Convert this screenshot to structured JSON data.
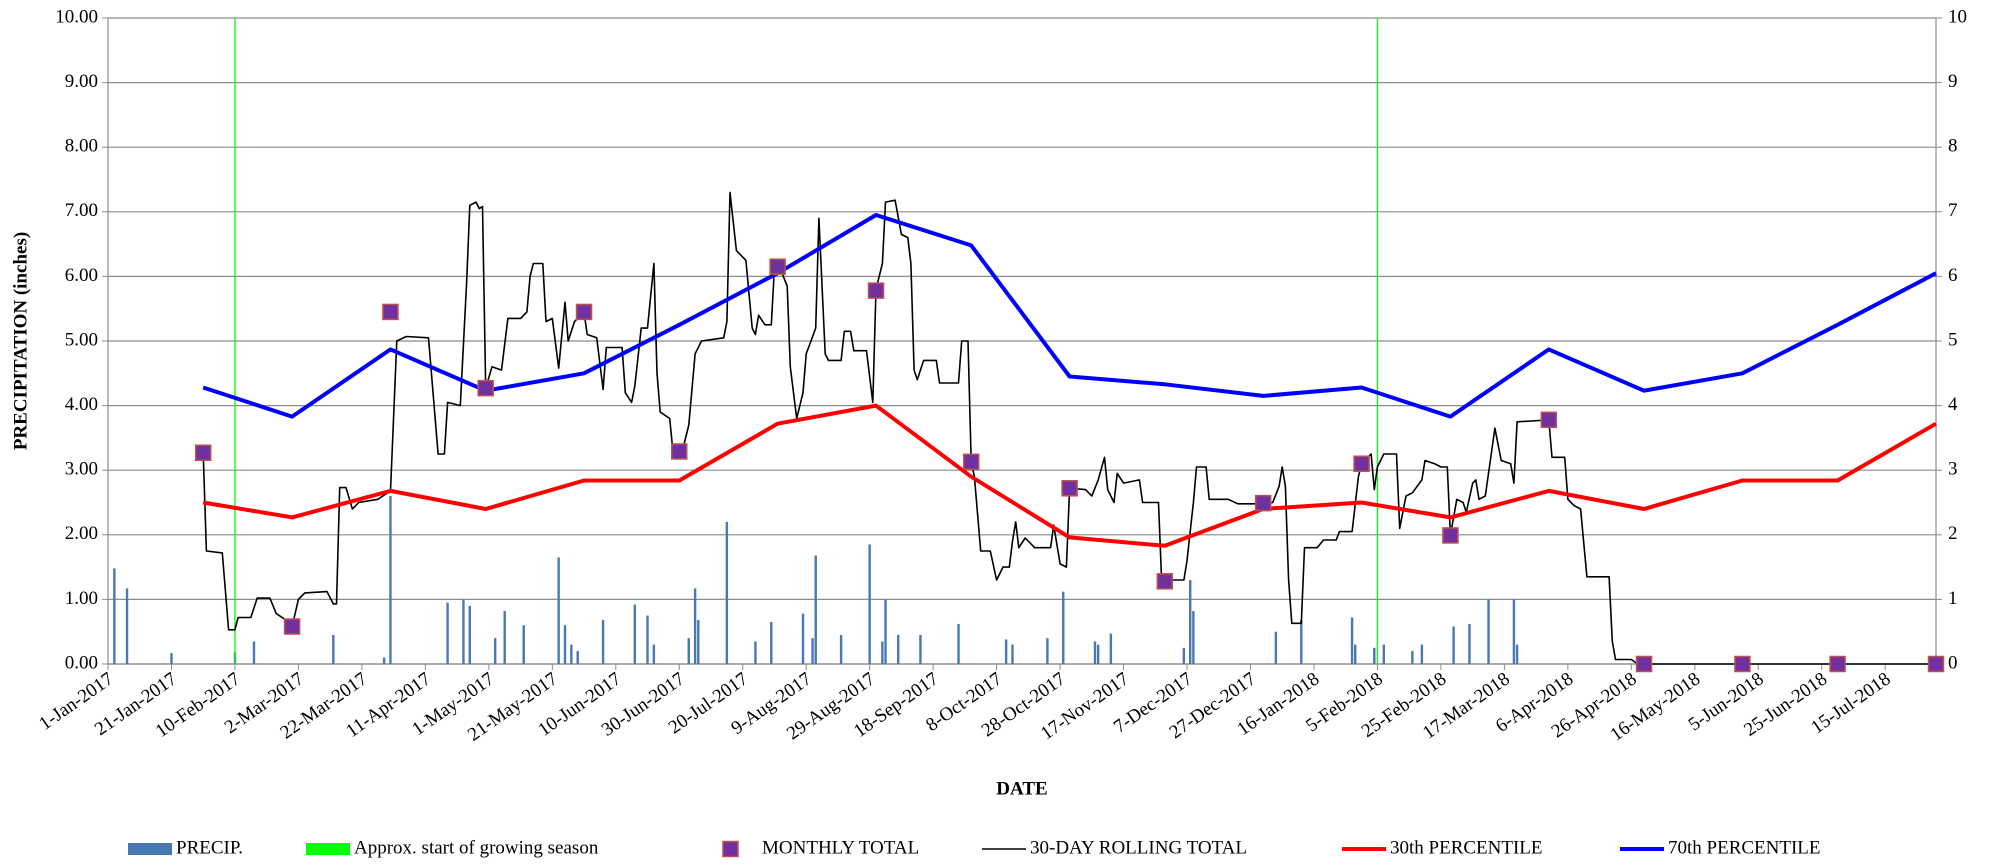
{
  "chart_data": {
    "type": "combo",
    "ylabel": "PRECIPITATION (inches)",
    "xlabel": "DATE",
    "xlim": [
      "1-Jan-2017",
      "31-Jul-2018"
    ],
    "xticks": [
      "1-Jan-2017",
      "21-Jan-2017",
      "10-Feb-2017",
      "2-Mar-2017",
      "22-Mar-2017",
      "11-Apr-2017",
      "1-May-2017",
      "21-May-2017",
      "10-Jun-2017",
      "30-Jun-2017",
      "20-Jul-2017",
      "9-Aug-2017",
      "29-Aug-2017",
      "18-Sep-2017",
      "8-Oct-2017",
      "28-Oct-2017",
      "17-Nov-2017",
      "7-Dec-2017",
      "27-Dec-2017",
      "16-Jan-2018",
      "5-Feb-2018",
      "25-Feb-2018",
      "17-Mar-2018",
      "6-Apr-2018",
      "26-Apr-2018",
      "16-May-2018",
      "5-Jun-2018",
      "25-Jun-2018",
      "15-Jul-2018"
    ],
    "ylim": [
      0,
      10
    ],
    "yticks": [
      {
        "value": 0,
        "label": "0.00"
      },
      {
        "value": 1,
        "label": "1.00"
      },
      {
        "value": 2,
        "label": "2.00"
      },
      {
        "value": 3,
        "label": "3.00"
      },
      {
        "value": 4,
        "label": "4.00"
      },
      {
        "value": 5,
        "label": "5.00"
      },
      {
        "value": 6,
        "label": "6.00"
      },
      {
        "value": 7,
        "label": "7.00"
      },
      {
        "value": 8,
        "label": "8.00"
      },
      {
        "value": 9,
        "label": "9.00"
      },
      {
        "value": 10,
        "label": "10.00"
      }
    ],
    "y2lim": [
      0,
      10
    ],
    "y2ticks": [
      0,
      1,
      2,
      3,
      4,
      5,
      6,
      7,
      8,
      9,
      10
    ],
    "grid": true,
    "legend": "bottom",
    "series": [
      {
        "name": "PRECIP.",
        "type": "bar",
        "axis": "y2",
        "color": "#4a78b0",
        "x": [
          "3-Jan-2017",
          "7-Jan-2017",
          "21-Jan-2017",
          "10-Feb-2017",
          "16-Feb-2017",
          "13-Mar-2017",
          "29-Mar-2017",
          "31-Mar-2017",
          "18-Apr-2017",
          "23-Apr-2017",
          "25-Apr-2017",
          "3-May-2017",
          "6-May-2017",
          "12-May-2017",
          "23-May-2017",
          "25-May-2017",
          "27-May-2017",
          "29-May-2017",
          "6-Jun-2017",
          "16-Jun-2017",
          "20-Jun-2017",
          "22-Jun-2017",
          "3-Jul-2017",
          "5-Jul-2017",
          "6-Jul-2017",
          "15-Jul-2017",
          "24-Jul-2017",
          "29-Jul-2017",
          "8-Aug-2017",
          "11-Aug-2017",
          "12-Aug-2017",
          "20-Aug-2017",
          "29-Aug-2017",
          "2-Sep-2017",
          "3-Sep-2017",
          "7-Sep-2017",
          "14-Sep-2017",
          "26-Sep-2017",
          "11-Oct-2017",
          "13-Oct-2017",
          "24-Oct-2017",
          "29-Oct-2017",
          "8-Nov-2017",
          "9-Nov-2017",
          "13-Nov-2017",
          "6-Dec-2017",
          "8-Dec-2017",
          "9-Dec-2017",
          "4-Jan-2018",
          "12-Jan-2018",
          "28-Jan-2018",
          "29-Jan-2018",
          "4-Feb-2018",
          "7-Feb-2018",
          "16-Feb-2018",
          "19-Feb-2018",
          "1-Mar-2018",
          "6-Mar-2018",
          "12-Mar-2018",
          "20-Mar-2018",
          "21-Mar-2018"
        ],
        "values": [
          1.48,
          1.17,
          0.17,
          0.18,
          0.35,
          0.45,
          0.1,
          2.6,
          0.95,
          1.0,
          0.9,
          0.4,
          0.82,
          0.6,
          1.65,
          0.6,
          0.3,
          0.2,
          0.68,
          0.92,
          0.75,
          0.3,
          0.4,
          1.17,
          0.68,
          2.2,
          0.35,
          0.65,
          0.78,
          0.4,
          1.68,
          0.45,
          1.85,
          0.35,
          1.0,
          0.45,
          0.45,
          0.62,
          0.38,
          0.3,
          0.4,
          1.12,
          0.35,
          0.3,
          0.47,
          0.25,
          1.3,
          0.82,
          0.5,
          0.68,
          0.72,
          0.3,
          0.25,
          0.3,
          0.2,
          0.3,
          0.58,
          0.62,
          1.0,
          1.0,
          0.3
        ]
      },
      {
        "name": "Approx. start of growing season",
        "type": "vline",
        "color": "#00ff00",
        "x": [
          "10-Feb-2017",
          "5-Feb-2018"
        ]
      },
      {
        "name": "MONTHLY TOTAL",
        "type": "scatter",
        "color": "#7030a0",
        "edge": "#c0504d",
        "x": [
          "31-Jan-2017",
          "28-Feb-2017",
          "31-Mar-2017",
          "30-Apr-2017",
          "31-May-2017",
          "30-Jun-2017",
          "31-Jul-2017",
          "31-Aug-2017",
          "30-Sep-2017",
          "31-Oct-2017",
          "30-Nov-2017",
          "31-Dec-2017",
          "31-Jan-2018",
          "28-Feb-2018",
          "31-Mar-2018",
          "30-Apr-2018",
          "31-May-2018",
          "30-Jun-2018",
          "31-Jul-2018"
        ],
        "values": [
          3.27,
          0.58,
          5.45,
          4.27,
          5.45,
          3.29,
          6.15,
          5.78,
          3.13,
          2.72,
          1.28,
          2.49,
          3.1,
          1.99,
          3.78,
          0,
          0,
          0,
          0
        ]
      },
      {
        "name": "30-DAY ROLLING TOTAL",
        "type": "line",
        "color": "#000000",
        "width": 1.6,
        "x": [
          "31-Jan-2017",
          "1-Feb-2017",
          "6-Feb-2017",
          "8-Feb-2017",
          "10-Feb-2017",
          "11-Feb-2017",
          "15-Feb-2017",
          "17-Feb-2017",
          "21-Feb-2017",
          "23-Feb-2017",
          "27-Feb-2017",
          "28-Feb-2017",
          "2-Mar-2017",
          "4-Mar-2017",
          "11-Mar-2017",
          "13-Mar-2017",
          "14-Mar-2017",
          "15-Mar-2017",
          "17-Mar-2017",
          "19-Mar-2017",
          "21-Mar-2017",
          "27-Mar-2017",
          "31-Mar-2017",
          "2-Apr-2017",
          "5-Apr-2017",
          "12-Apr-2017",
          "15-Apr-2017",
          "17-Apr-2017",
          "18-Apr-2017",
          "22-Apr-2017",
          "24-Apr-2017",
          "25-Apr-2017",
          "27-Apr-2017",
          "28-Apr-2017",
          "29-Apr-2017",
          "30-Apr-2017",
          "2-May-2017",
          "5-May-2017",
          "7-May-2017",
          "11-May-2017",
          "13-May-2017",
          "14-May-2017",
          "15-May-2017",
          "18-May-2017",
          "19-May-2017",
          "21-May-2017",
          "23-May-2017",
          "25-May-2017",
          "26-May-2017",
          "28-May-2017",
          "31-May-2017",
          "1-Jun-2017",
          "4-Jun-2017",
          "6-Jun-2017",
          "7-Jun-2017",
          "12-Jun-2017",
          "13-Jun-2017",
          "15-Jun-2017",
          "16-Jun-2017",
          "18-Jun-2017",
          "20-Jun-2017",
          "22-Jun-2017",
          "23-Jun-2017",
          "24-Jun-2017",
          "27-Jun-2017",
          "28-Jun-2017",
          "1-Jul-2017",
          "3-Jul-2017",
          "5-Jul-2017",
          "7-Jul-2017",
          "14-Jul-2017",
          "15-Jul-2017",
          "16-Jul-2017",
          "18-Jul-2017",
          "21-Jul-2017",
          "23-Jul-2017",
          "24-Jul-2017",
          "25-Jul-2017",
          "27-Jul-2017",
          "29-Jul-2017",
          "30-Jul-2017",
          "1-Aug-2017",
          "3-Aug-2017",
          "4-Aug-2017",
          "6-Aug-2017",
          "8-Aug-2017",
          "9-Aug-2017",
          "12-Aug-2017",
          "13-Aug-2017",
          "15-Aug-2017",
          "16-Aug-2017",
          "20-Aug-2017",
          "21-Aug-2017",
          "23-Aug-2017",
          "24-Aug-2017",
          "28-Aug-2017",
          "30-Aug-2017",
          "31-Aug-2017",
          "2-Sep-2017",
          "3-Sep-2017",
          "6-Sep-2017",
          "8-Sep-2017",
          "10-Sep-2017",
          "11-Sep-2017",
          "12-Sep-2017",
          "13-Sep-2017",
          "15-Sep-2017",
          "19-Sep-2017",
          "20-Sep-2017",
          "26-Sep-2017",
          "27-Sep-2017",
          "29-Sep-2017",
          "30-Sep-2017",
          "1-Oct-2017",
          "3-Oct-2017",
          "6-Oct-2017",
          "8-Oct-2017",
          "10-Oct-2017",
          "12-Oct-2017",
          "13-Oct-2017",
          "14-Oct-2017",
          "15-Oct-2017",
          "17-Oct-2017",
          "20-Oct-2017",
          "25-Oct-2017",
          "26-Oct-2017",
          "28-Oct-2017",
          "30-Oct-2017",
          "31-Oct-2017",
          "5-Nov-2017",
          "7-Nov-2017",
          "9-Nov-2017",
          "11-Nov-2017",
          "12-Nov-2017",
          "14-Nov-2017",
          "15-Nov-2017",
          "17-Nov-2017",
          "22-Nov-2017",
          "23-Nov-2017",
          "28-Nov-2017",
          "29-Nov-2017",
          "6-Dec-2017",
          "7-Dec-2017",
          "9-Dec-2017",
          "10-Dec-2017",
          "13-Dec-2017",
          "14-Dec-2017",
          "20-Dec-2017",
          "23-Dec-2017",
          "31-Dec-2017",
          "3-Jan-2018",
          "5-Jan-2018",
          "6-Jan-2018",
          "7-Jan-2018",
          "8-Jan-2018",
          "9-Jan-2018",
          "12-Jan-2018",
          "13-Jan-2018",
          "17-Jan-2018",
          "19-Jan-2018",
          "23-Jan-2018",
          "24-Jan-2018",
          "28-Jan-2018",
          "30-Jan-2018",
          "31-Jan-2018",
          "3-Feb-2018",
          "4-Feb-2018",
          "5-Feb-2018",
          "7-Feb-2018",
          "11-Feb-2018",
          "12-Feb-2018",
          "14-Feb-2018",
          "16-Feb-2018",
          "19-Feb-2018",
          "20-Feb-2018",
          "23-Feb-2018",
          "25-Feb-2018",
          "27-Feb-2018",
          "28-Feb-2018",
          "2-Mar-2018",
          "4-Mar-2018",
          "5-Mar-2018",
          "7-Mar-2018",
          "8-Mar-2018",
          "9-Mar-2018",
          "11-Mar-2018",
          "14-Mar-2018",
          "16-Mar-2018",
          "19-Mar-2018",
          "20-Mar-2018",
          "21-Mar-2018",
          "28-Mar-2018",
          "31-Mar-2018",
          "1-Apr-2018",
          "5-Apr-2018",
          "6-Apr-2018",
          "8-Apr-2018",
          "10-Apr-2018",
          "12-Apr-2018",
          "19-Apr-2018",
          "20-Apr-2018",
          "21-Apr-2018",
          "26-Apr-2018",
          "28-Apr-2018",
          "31-Jul-2018"
        ],
        "values": [
          3.27,
          1.75,
          1.72,
          0.53,
          0.53,
          0.72,
          0.72,
          1.02,
          1.02,
          0.78,
          0.65,
          0.58,
          1.0,
          1.1,
          1.12,
          0.93,
          0.93,
          2.73,
          2.73,
          2.4,
          2.5,
          2.55,
          2.68,
          5.0,
          5.07,
          5.05,
          3.25,
          3.25,
          4.05,
          4.0,
          5.9,
          7.1,
          7.15,
          7.05,
          7.08,
          4.27,
          4.6,
          4.55,
          5.35,
          5.35,
          5.45,
          6.0,
          6.2,
          6.2,
          5.3,
          5.35,
          4.58,
          5.6,
          5.0,
          5.3,
          5.45,
          5.1,
          5.05,
          4.25,
          4.9,
          4.9,
          4.2,
          4.05,
          4.3,
          5.2,
          5.2,
          6.2,
          4.5,
          3.9,
          3.8,
          3.3,
          3.3,
          3.7,
          4.8,
          5.0,
          5.05,
          5.3,
          7.3,
          6.4,
          6.25,
          5.2,
          5.1,
          5.4,
          5.25,
          5.25,
          6.15,
          6.1,
          5.85,
          4.6,
          3.8,
          4.2,
          4.8,
          5.2,
          6.9,
          4.8,
          4.7,
          4.7,
          5.15,
          5.15,
          4.85,
          4.85,
          4.05,
          5.8,
          6.2,
          7.15,
          7.18,
          6.65,
          6.6,
          6.2,
          4.55,
          4.4,
          4.7,
          4.7,
          4.35,
          4.35,
          5.0,
          5.0,
          3.13,
          2.9,
          1.75,
          1.75,
          1.3,
          1.5,
          1.5,
          1.9,
          2.2,
          1.8,
          1.95,
          1.8,
          1.8,
          2.15,
          1.55,
          1.5,
          2.72,
          2.7,
          2.6,
          2.85,
          3.2,
          2.7,
          2.5,
          2.95,
          2.8,
          2.85,
          2.5,
          2.5,
          1.3,
          1.3,
          1.6,
          2.5,
          3.05,
          3.05,
          2.55,
          2.55,
          2.48,
          2.48,
          2.5,
          2.75,
          3.05,
          2.75,
          1.3,
          0.63,
          0.63,
          1.8,
          1.8,
          1.92,
          1.92,
          2.05,
          2.05,
          2.9,
          3.1,
          3.25,
          2.7,
          3.05,
          3.25,
          3.25,
          2.1,
          2.6,
          2.65,
          2.85,
          3.15,
          3.1,
          3.05,
          3.05,
          1.99,
          2.55,
          2.5,
          2.35,
          2.8,
          2.85,
          2.55,
          2.6,
          3.65,
          3.15,
          3.1,
          2.8,
          3.75,
          3.77,
          3.78,
          3.2,
          3.2,
          2.55,
          2.45,
          2.4,
          1.35,
          1.35,
          0.35,
          0.07,
          0.07,
          0,
          0
        ]
      },
      {
        "name": "30th PERCENTILE",
        "type": "line",
        "color": "#ff0000",
        "width": 4,
        "x": [
          "31-Jan-2017",
          "28-Feb-2017",
          "31-Mar-2017",
          "30-Apr-2017",
          "31-May-2017",
          "30-Jun-2017",
          "31-Jul-2017",
          "31-Aug-2017",
          "30-Sep-2017",
          "31-Oct-2017",
          "30-Nov-2017",
          "31-Dec-2017",
          "31-Jan-2018",
          "28-Feb-2018",
          "31-Mar-2018",
          "30-Apr-2018",
          "31-May-2018",
          "30-Jun-2018",
          "31-Jul-2018"
        ],
        "values": [
          2.5,
          2.27,
          2.68,
          2.4,
          2.84,
          2.84,
          3.72,
          4.0,
          2.9,
          1.96,
          1.83,
          2.4,
          2.5,
          2.27,
          2.68,
          2.4,
          2.84,
          2.84,
          3.72
        ]
      },
      {
        "name": "70th PERCENTILE",
        "type": "line",
        "color": "#0000ff",
        "width": 4,
        "x": [
          "31-Jan-2017",
          "28-Feb-2017",
          "31-Mar-2017",
          "30-Apr-2017",
          "31-May-2017",
          "30-Jun-2017",
          "31-Jul-2017",
          "31-Aug-2017",
          "30-Sep-2017",
          "31-Oct-2017",
          "30-Nov-2017",
          "31-Dec-2017",
          "31-Jan-2018",
          "28-Feb-2018",
          "31-Mar-2018",
          "30-Apr-2018",
          "31-May-2018",
          "30-Jun-2018",
          "31-Jul-2018"
        ],
        "values": [
          4.28,
          3.83,
          4.87,
          4.23,
          4.5,
          5.25,
          6.05,
          6.95,
          6.48,
          4.45,
          4.33,
          4.15,
          4.28,
          3.83,
          4.87,
          4.23,
          4.5,
          5.25,
          6.05
        ]
      }
    ]
  }
}
